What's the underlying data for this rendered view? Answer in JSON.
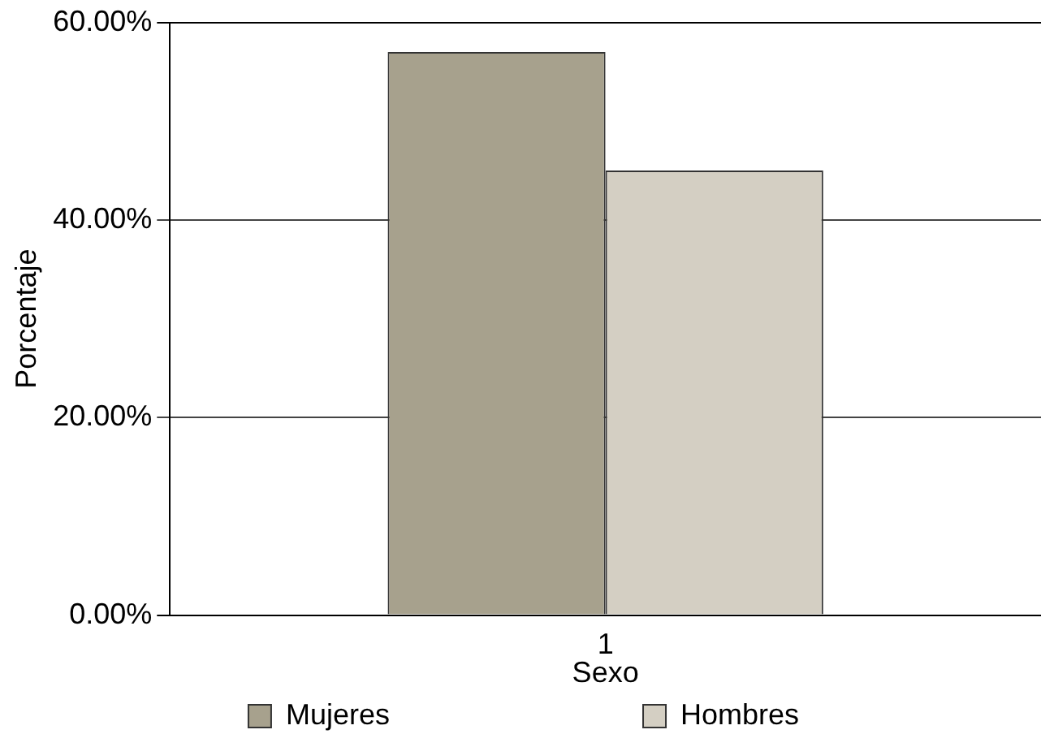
{
  "chart_data": {
    "type": "bar",
    "xlabel": "Sexo",
    "ylabel": "Porcentaje",
    "categories": [
      "1"
    ],
    "series": [
      {
        "name": "Mujeres",
        "color": "#a7a18d",
        "values": [
          57
        ]
      },
      {
        "name": "Hombres",
        "color": "#d4cfc3",
        "values": [
          45
        ]
      }
    ],
    "ylim": [
      0,
      60
    ],
    "yticks": [
      {
        "value": 0,
        "label": "0.00%"
      },
      {
        "value": 20,
        "label": "20.00%"
      },
      {
        "value": 40,
        "label": "40.00%"
      },
      {
        "value": 60,
        "label": "60.00%"
      }
    ],
    "grid": "y",
    "legend": "bottom"
  }
}
